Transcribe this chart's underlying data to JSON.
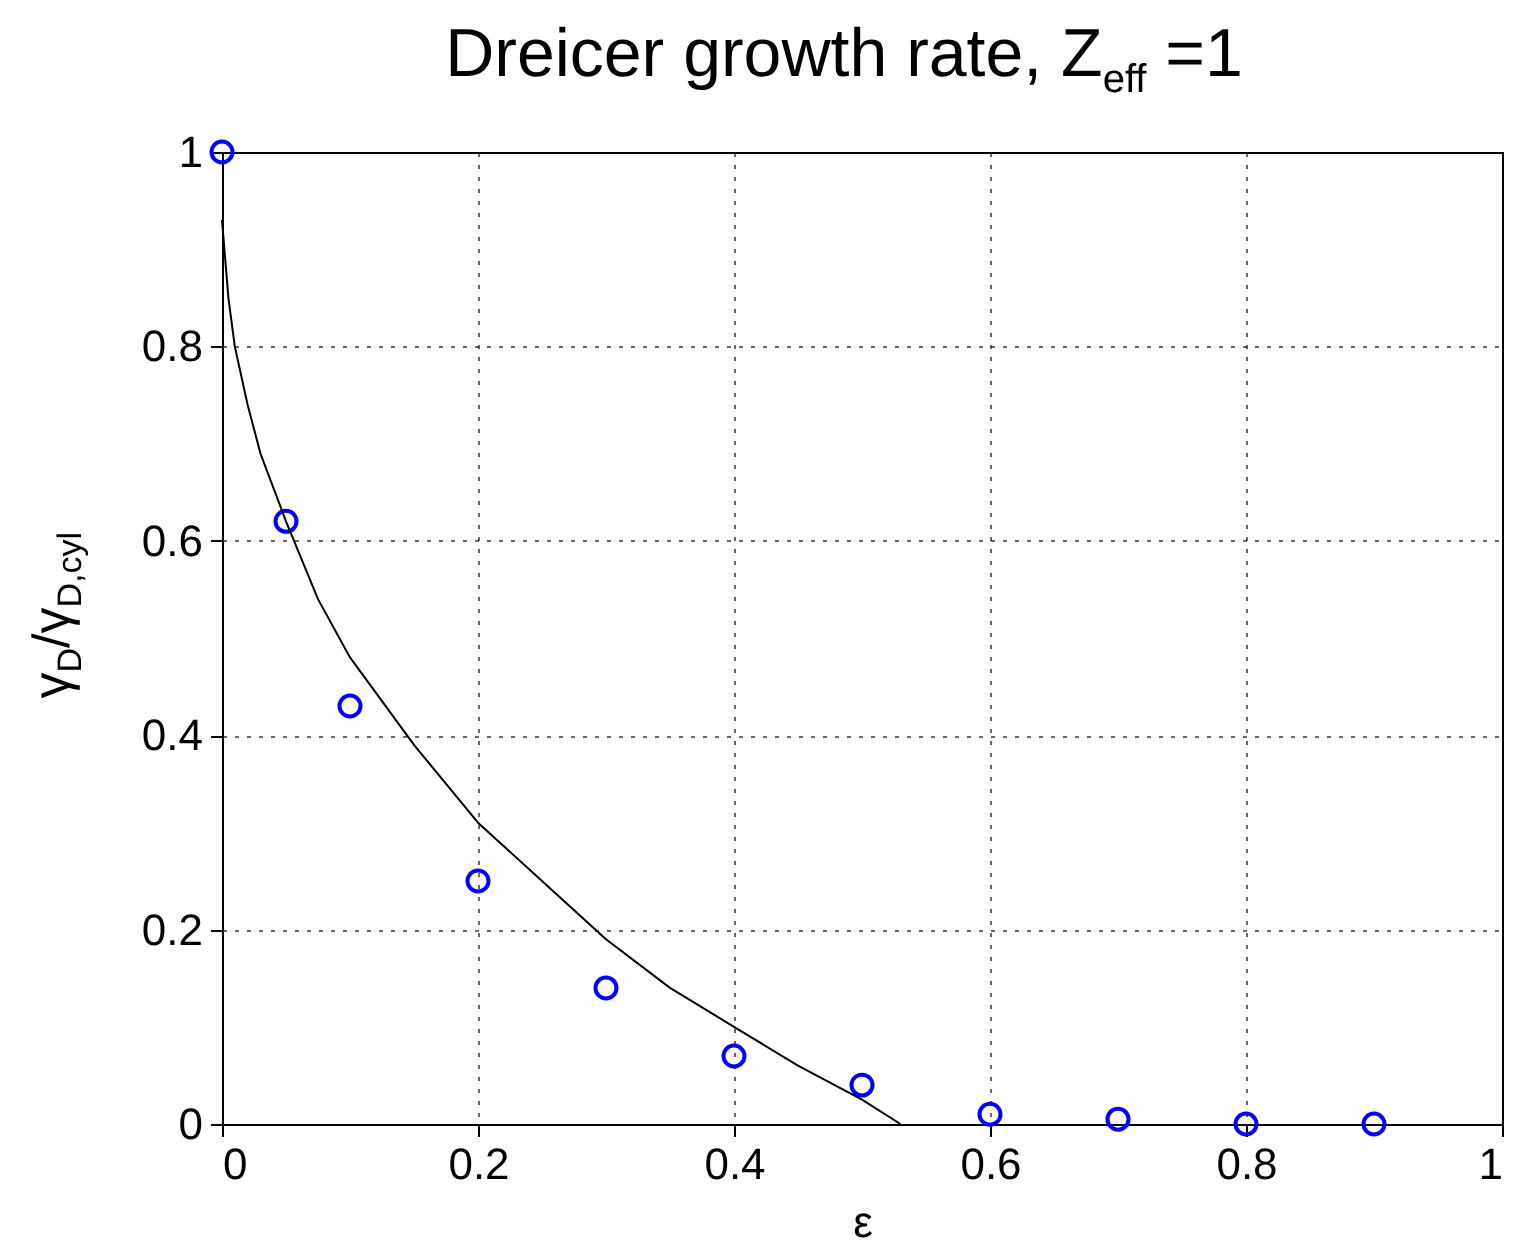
{
  "chart_data": {
    "type": "scatter",
    "title": "Dreicer growth rate, Z$_{eff}$ =1",
    "xlabel": "ε",
    "ylabel": "γ$_{D}$/γ$_{D,cyl}$",
    "xlim": [
      0,
      1
    ],
    "ylim": [
      0,
      1
    ],
    "xticks": [
      0,
      0.2,
      0.4,
      0.6,
      0.8,
      1
    ],
    "yticks": [
      0,
      0.2,
      0.4,
      0.6,
      0.8,
      1
    ],
    "grid": true,
    "series": [
      {
        "marker": "circle",
        "color": "#0000ff",
        "x": [
          0,
          0.05,
          0.1,
          0.2,
          0.3,
          0.4,
          0.5,
          0.6,
          0.7,
          0.8,
          0.9
        ],
        "values": [
          1,
          0.62,
          0.43,
          0.25,
          0.14,
          0.07,
          0.04,
          0.01,
          0.005,
          0,
          0
        ]
      },
      {
        "type": "line",
        "color": "#000000",
        "x": [
          0,
          0.005,
          0.01,
          0.02,
          0.03,
          0.05,
          0.075,
          0.1,
          0.15,
          0.2,
          0.25,
          0.3,
          0.35,
          0.4,
          0.45,
          0.5,
          0.53
        ],
        "values": [
          0.93,
          0.85,
          0.8,
          0.74,
          0.69,
          0.62,
          0.54,
          0.48,
          0.39,
          0.31,
          0.25,
          0.19,
          0.14,
          0.1,
          0.06,
          0.025,
          0
        ]
      }
    ]
  }
}
